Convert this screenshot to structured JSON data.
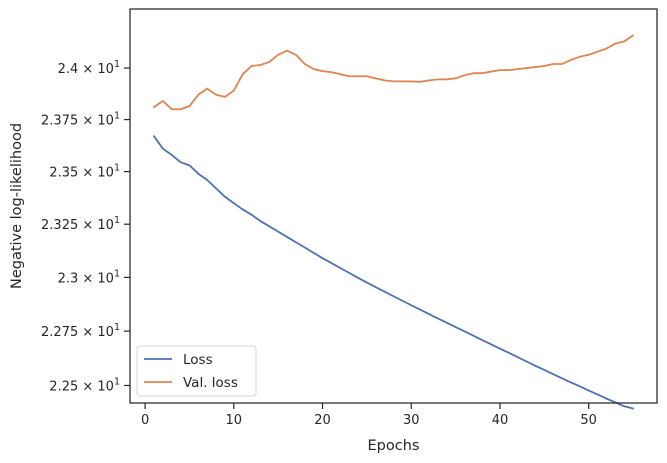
{
  "chart_data": {
    "type": "line",
    "xlabel": "Epochs",
    "ylabel": "Negative log-likelihood",
    "xlim": [
      -1.7,
      57.7
    ],
    "ylim": [
      22.42,
      24.29
    ],
    "y_scale": "log",
    "x_ticks": [
      0,
      10,
      20,
      30,
      40,
      50
    ],
    "x_tick_labels": [
      "0",
      "10",
      "20",
      "30",
      "40",
      "50"
    ],
    "y_ticks": [
      22.5,
      22.75,
      23.0,
      23.25,
      23.5,
      23.75,
      24.0
    ],
    "y_tick_labels": [
      {
        "mant": "2.25",
        "exp": "1"
      },
      {
        "mant": "2.275",
        "exp": "1"
      },
      {
        "mant": "2.3",
        "exp": "1"
      },
      {
        "mant": "2.325",
        "exp": "1"
      },
      {
        "mant": "2.35",
        "exp": "1"
      },
      {
        "mant": "2.375",
        "exp": "1"
      },
      {
        "mant": "2.4",
        "exp": "1"
      }
    ],
    "grid": false,
    "legend_position": "lower-left",
    "x": [
      1,
      2,
      3,
      4,
      5,
      6,
      7,
      8,
      9,
      10,
      11,
      12,
      13,
      14,
      15,
      16,
      17,
      18,
      19,
      20,
      21,
      22,
      23,
      24,
      25,
      26,
      27,
      28,
      29,
      30,
      31,
      32,
      33,
      34,
      35,
      36,
      37,
      38,
      39,
      40,
      41,
      42,
      43,
      44,
      45,
      46,
      47,
      48,
      49,
      50,
      51,
      52,
      53,
      54,
      55
    ],
    "series": [
      {
        "name": "Loss",
        "color": "#4c72b0",
        "values": [
          23.67,
          23.61,
          23.58,
          23.545,
          23.53,
          23.49,
          23.46,
          23.42,
          23.38,
          23.35,
          23.32,
          23.295,
          23.265,
          23.24,
          23.215,
          23.19,
          23.165,
          23.14,
          23.115,
          23.09,
          23.067,
          23.044,
          23.021,
          22.998,
          22.976,
          22.954,
          22.933,
          22.912,
          22.891,
          22.87,
          22.85,
          22.829,
          22.809,
          22.789,
          22.769,
          22.749,
          22.729,
          22.709,
          22.689,
          22.669,
          22.65,
          22.63,
          22.61,
          22.59,
          22.571,
          22.552,
          22.533,
          22.514,
          22.496,
          22.477,
          22.459,
          22.44,
          22.423,
          22.405,
          22.395
        ]
      },
      {
        "name": "Val. loss",
        "color": "#dd8452",
        "values": [
          23.81,
          23.84,
          23.8,
          23.8,
          23.815,
          23.87,
          23.9,
          23.87,
          23.86,
          23.89,
          23.97,
          24.01,
          24.015,
          24.03,
          24.065,
          24.085,
          24.065,
          24.02,
          23.995,
          23.985,
          23.98,
          23.97,
          23.96,
          23.96,
          23.96,
          23.95,
          23.94,
          23.935,
          23.935,
          23.935,
          23.933,
          23.94,
          23.945,
          23.945,
          23.95,
          23.965,
          23.975,
          23.975,
          23.983,
          23.99,
          23.99,
          23.995,
          24.0,
          24.005,
          24.01,
          24.02,
          24.02,
          24.04,
          24.055,
          24.065,
          24.08,
          24.095,
          24.12,
          24.13,
          24.16
        ]
      }
    ]
  }
}
